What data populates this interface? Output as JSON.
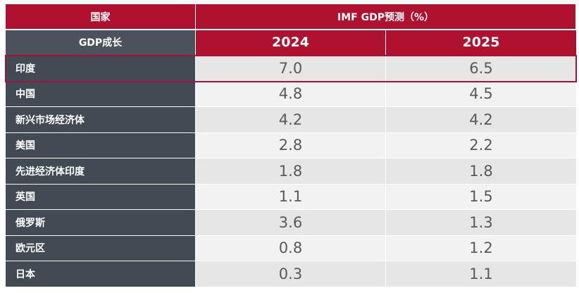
{
  "header": {
    "country_label": "国家",
    "forecast_label": "IMF GDP预测（%）",
    "growth_label": "GDP成长",
    "years": [
      "2024",
      "2025"
    ]
  },
  "rows": [
    {
      "country": "印度",
      "y2024": "7.0",
      "y2025": "6.5",
      "highlighted": true
    },
    {
      "country": "中国",
      "y2024": "4.8",
      "y2025": "4.5"
    },
    {
      "country": "新兴市场经济体",
      "y2024": "4.2",
      "y2025": "4.2"
    },
    {
      "country": "美国",
      "y2024": "2.8",
      "y2025": "2.2"
    },
    {
      "country": "先进经济体印度",
      "y2024": "1.8",
      "y2025": "1.8"
    },
    {
      "country": "英国",
      "y2024": "1.1",
      "y2025": "1.5"
    },
    {
      "country": "俄罗斯",
      "y2024": "3.6",
      "y2025": "1.3"
    },
    {
      "country": "欧元区",
      "y2024": "0.8",
      "y2025": "1.2"
    },
    {
      "country": "日本",
      "y2024": "0.3",
      "y2025": "1.1"
    }
  ],
  "colors": {
    "header_red": "#b0112f",
    "country_col": "#424b53",
    "highlight_border": "#a8123a"
  }
}
